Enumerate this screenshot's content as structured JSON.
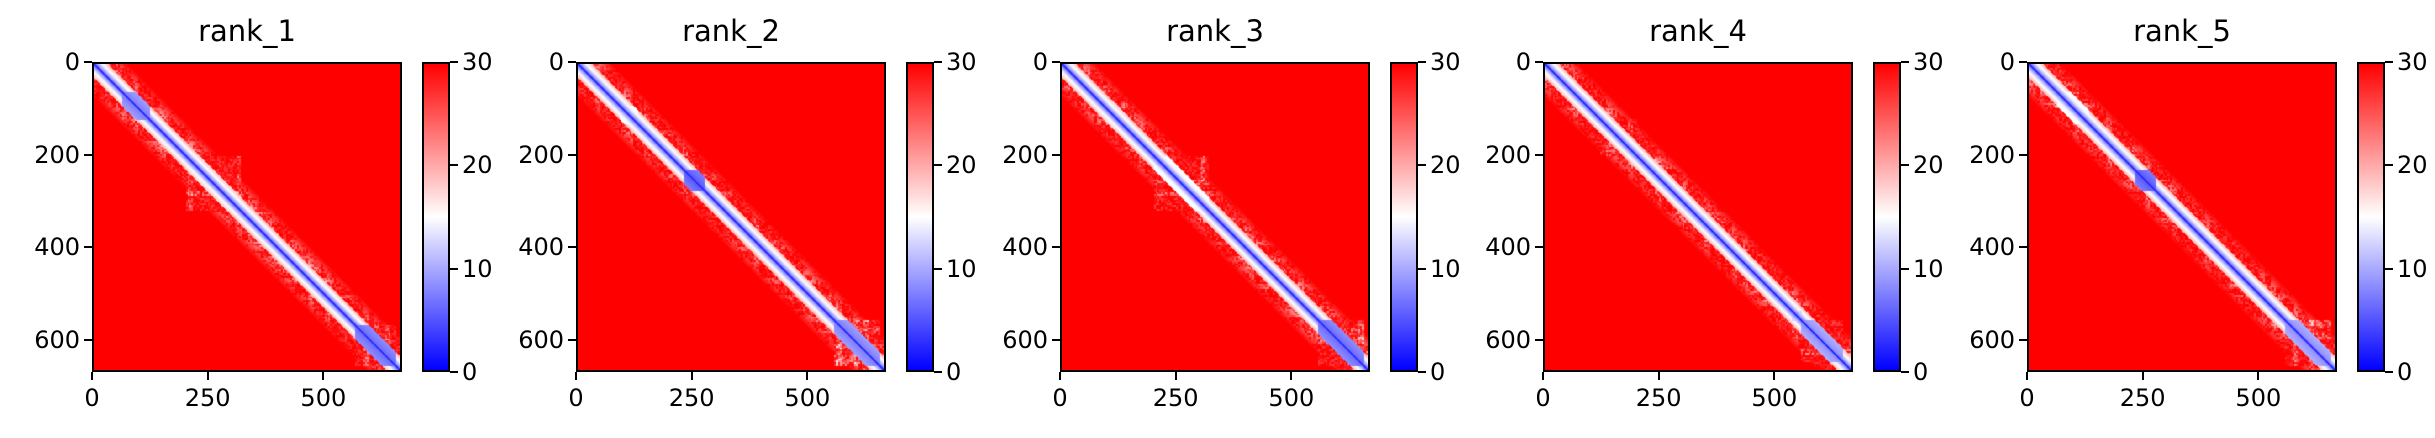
{
  "chart_data": [
    {
      "type": "heatmap",
      "title": "rank_1",
      "x_ticks": [
        "0",
        "250",
        "500"
      ],
      "y_ticks": [
        "0",
        "200",
        "400",
        "600"
      ],
      "matrix_size": 670,
      "value_range": [
        0,
        30
      ],
      "colorbar": {
        "colormap": "bwr",
        "ticks": [
          "0",
          "10",
          "20",
          "30"
        ],
        "range": [
          0,
          30
        ]
      },
      "pattern": "distance matrix: ~0 along diagonal, blue domains near 50-120 and 580-660, lighter block 200-320, mostly saturated red (>=30) elsewhere"
    },
    {
      "type": "heatmap",
      "title": "rank_2",
      "x_ticks": [
        "0",
        "250",
        "500"
      ],
      "y_ticks": [
        "0",
        "200",
        "400",
        "600"
      ],
      "matrix_size": 670,
      "value_range": [
        0,
        30
      ],
      "colorbar": {
        "colormap": "bwr",
        "ticks": [
          "0",
          "10",
          "20",
          "30"
        ],
        "range": [
          0,
          30
        ]
      },
      "pattern": "distance matrix: ~0 along diagonal, blue spots near 240-270 and 580-650, mostly saturated red (>=30) elsewhere"
    },
    {
      "type": "heatmap",
      "title": "rank_3",
      "x_ticks": [
        "0",
        "250",
        "500"
      ],
      "y_ticks": [
        "0",
        "200",
        "400",
        "600"
      ],
      "matrix_size": 670,
      "value_range": [
        0,
        30
      ],
      "colorbar": {
        "colormap": "bwr",
        "ticks": [
          "0",
          "10",
          "20",
          "30"
        ],
        "range": [
          0,
          30
        ]
      },
      "pattern": "distance matrix: ~0 along diagonal, light region 200-320 and 580-660, mostly saturated red (>=30) elsewhere"
    },
    {
      "type": "heatmap",
      "title": "rank_4",
      "x_ticks": [
        "0",
        "250",
        "500"
      ],
      "y_ticks": [
        "0",
        "200",
        "400",
        "600"
      ],
      "matrix_size": 670,
      "value_range": [
        0,
        30
      ],
      "colorbar": {
        "colormap": "bwr",
        "ticks": [
          "0",
          "10",
          "20",
          "30"
        ],
        "range": [
          0,
          30
        ]
      },
      "pattern": "distance matrix: ~0 along diagonal, blue domain near 580-650, mostly saturated red (>=30) elsewhere"
    },
    {
      "type": "heatmap",
      "title": "rank_5",
      "x_ticks": [
        "0",
        "250",
        "500"
      ],
      "y_ticks": [
        "0",
        "200",
        "400",
        "600"
      ],
      "matrix_size": 670,
      "value_range": [
        0,
        30
      ],
      "colorbar": {
        "colormap": "bwr",
        "ticks": [
          "0",
          "10",
          "20",
          "30"
        ],
        "range": [
          0,
          30
        ]
      },
      "pattern": "distance matrix: ~0 along diagonal, blue spot near 240-270 and 580-650, mostly saturated red (>=30) elsewhere"
    }
  ],
  "colors": {
    "low": "#0000ff",
    "mid": "#ffffff",
    "high": "#ff0000",
    "axis": "#000000"
  }
}
